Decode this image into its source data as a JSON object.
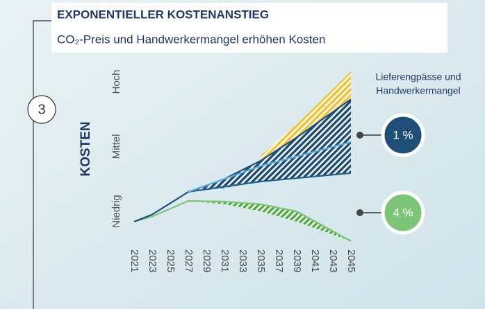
{
  "badge": "3",
  "chart_data": {
    "type": "line",
    "title": "EXPONENTIELLER KOSTENANSTIEG",
    "subtitle": "CO₂-Preis und Handwerkermangel erhöhen Kosten",
    "ylabel": "KOSTEN",
    "xlim": [
      2021,
      2045
    ],
    "xticks": [
      2021,
      2023,
      2025,
      2027,
      2029,
      2031,
      2033,
      2035,
      2037,
      2039,
      2041,
      2043,
      2045
    ],
    "ylim": [
      0.5,
      3.2
    ],
    "yticks": [
      {
        "value": 1,
        "label": "Niedrig"
      },
      {
        "value": 2,
        "label": "Mittel"
      },
      {
        "value": 3,
        "label": "Hoch"
      }
    ],
    "bands": [
      {
        "color": "#f2c230",
        "x": [
          2035,
          2039,
          2045
        ],
        "high": [
          1.86,
          2.34,
          3.16
        ],
        "low": [
          1.78,
          2.14,
          2.73
        ]
      },
      {
        "color": "#1f4e79",
        "x": [
          2027,
          2031,
          2035,
          2039,
          2045
        ],
        "high": [
          1.3,
          1.5,
          1.78,
          2.14,
          2.73
        ],
        "low": [
          1.3,
          1.36,
          1.46,
          1.52,
          1.59
        ]
      },
      {
        "color": "#4fae3f",
        "x": [
          2027,
          2031,
          2035,
          2039,
          2045
        ],
        "high": [
          1.16,
          1.15,
          1.11,
          1.0,
          0.54
        ],
        "low": [
          1.16,
          1.11,
          1.0,
          0.84,
          0.54
        ]
      }
    ],
    "series": [
      {
        "color": "#7cc576",
        "x": [
          2021,
          2023,
          2027,
          2031,
          2035,
          2039,
          2045
        ],
        "values": [
          0.84,
          0.92,
          1.16,
          1.15,
          1.11,
          1.0,
          0.54
        ]
      },
      {
        "color": "#1f4e79",
        "x": [
          2021,
          2023,
          2027,
          2031,
          2035,
          2039,
          2045
        ],
        "values": [
          0.84,
          0.95,
          1.3,
          1.5,
          1.78,
          2.14,
          2.73
        ]
      },
      {
        "color": "#1f5f8b",
        "x": [
          2027,
          2035,
          2045
        ],
        "values": [
          1.3,
          1.46,
          1.59
        ]
      },
      {
        "color": "#5aaee0",
        "x": [
          2027,
          2035,
          2045
        ],
        "values": [
          1.3,
          1.7,
          2.07
        ]
      }
    ],
    "annotations": [
      "Lieferengpässe und",
      "Handwerkermangel"
    ],
    "callouts": [
      {
        "label": "1 %",
        "color": "#1f4e79"
      },
      {
        "label": "4 %",
        "color": "#7cc576"
      }
    ]
  }
}
